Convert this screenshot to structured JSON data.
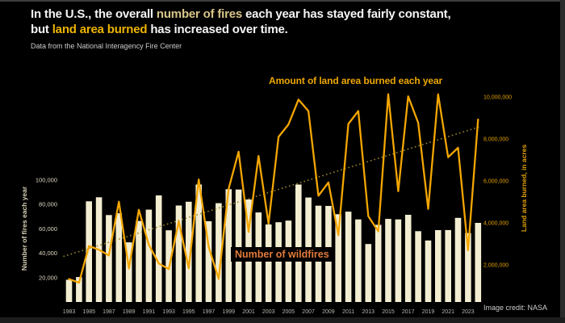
{
  "header": {
    "line1": {
      "pre": "In the U.S., the overall ",
      "highlight": "number of fires",
      "post": " each year has stayed fairly constant,"
    },
    "line2": {
      "pre": "but ",
      "highlight": "land area burned",
      "post": " has increased over time."
    },
    "subtitle": "Data from the National Interagency Fire Center"
  },
  "footer": {
    "credit": "Image credit: NASA"
  },
  "theme": {
    "background": "#000000",
    "title_color": "#f5f5f5",
    "fires_highlight_color": "#d8c488",
    "burned_highlight_color": "#eeb501",
    "bar_color": "#f3edd1",
    "line_color": "#f3a602",
    "trend_color": "#9c8529"
  },
  "chart_data": {
    "type": "bar+line",
    "categories": [
      1983,
      1984,
      1985,
      1986,
      1987,
      1988,
      1989,
      1990,
      1991,
      1992,
      1993,
      1994,
      1995,
      1996,
      1997,
      1998,
      1999,
      2000,
      2001,
      2002,
      2003,
      2004,
      2005,
      2006,
      2007,
      2008,
      2009,
      2010,
      2011,
      2012,
      2013,
      2014,
      2015,
      2016,
      2017,
      2018,
      2019,
      2020,
      2021,
      2022,
      2023,
      2024
    ],
    "series": [
      {
        "name": "Number of wildfires",
        "type": "bar",
        "axis": "left",
        "color": "#f3edd1",
        "values": [
          18229,
          20493,
          82591,
          85907,
          71300,
          72750,
          48949,
          66481,
          75754,
          87394,
          58810,
          79107,
          82234,
          96363,
          66196,
          81043,
          92487,
          92250,
          84079,
          73457,
          63629,
          65461,
          66753,
          96385,
          85705,
          78979,
          78792,
          71971,
          74126,
          67774,
          47579,
          63312,
          68151,
          67743,
          71499,
          58083,
          50477,
          58950,
          58985,
          68988,
          56580,
          64897
        ]
      },
      {
        "name": "Amount of land area burned each year",
        "type": "line",
        "axis": "right",
        "color": "#f3a602",
        "values": [
          1323666,
          1148409,
          2896147,
          2719162,
          2447296,
          5009290,
          1827310,
          4621621,
          2953578,
          2069929,
          1797574,
          4073579,
          1840546,
          6065998,
          2856959,
          1329704,
          5626093,
          7393493,
          3570911,
          7184712,
          3960842,
          8097880,
          8689389,
          9873745,
          9328045,
          5292468,
          5921786,
          3422724,
          8711367,
          9326238,
          4319546,
          3595613,
          10125149,
          5509995,
          10026086,
          8767492,
          4664364,
          10122336,
          7125643,
          7577183,
          2693910,
          8924884
        ]
      }
    ],
    "trendline": {
      "series": "Amount of land area burned each year",
      "style": "dotted",
      "color": "#9c8529",
      "start_year": 1983,
      "end_year": 2024,
      "start_value": 2400000,
      "end_value": 8600000
    },
    "left_axis": {
      "label": "Number of fires each year",
      "ticks": [
        "20,000",
        "40,000",
        "60,000",
        "80,000",
        "100,000"
      ],
      "tick_values": [
        20000,
        40000,
        60000,
        80000,
        100000
      ],
      "range": [
        0,
        105000
      ],
      "color": "#ded7c0",
      "title_color": "#d9d2b8"
    },
    "right_axis": {
      "label": "Land area burned, in acres",
      "ticks": [
        "2,000,000",
        "4,000,000",
        "6,000,000",
        "8,000,000",
        "10,000,000"
      ],
      "tick_values": [
        2000000,
        4000000,
        6000000,
        8000000,
        10000000
      ],
      "range": [
        0,
        10500000
      ],
      "color": "#e2a106",
      "title_color": "#e2a106"
    },
    "x_axis": {
      "tick_labels": [
        "1983",
        "1985",
        "1987",
        "1989",
        "1991",
        "1993",
        "1995",
        "1997",
        "1999",
        "2001",
        "2003",
        "2005",
        "2007",
        "2009",
        "2011",
        "2013",
        "2015",
        "2017",
        "2019",
        "2021",
        "2023"
      ],
      "color": "#b8b6b0"
    },
    "grid": "off",
    "legend": "inline-annotations",
    "annotations": [
      {
        "text": "Amount of land area burned each year",
        "color": "#eda701"
      },
      {
        "text": "Number of wildfires",
        "color": "#e27a3a",
        "background": "#000000"
      }
    ]
  }
}
